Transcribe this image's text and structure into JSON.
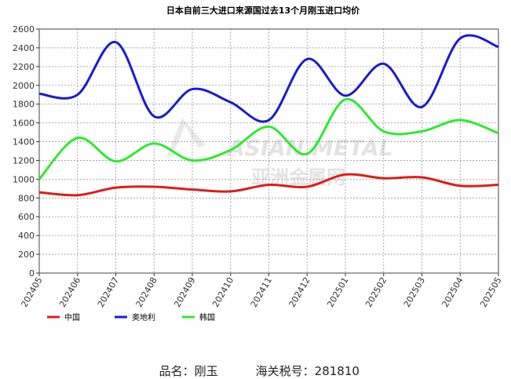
{
  "chart_data": {
    "type": "line",
    "title": "日本自前三大进口来源国过去13个月刚玉进口均价",
    "xlabel": "",
    "ylabel": "",
    "ylim": [
      0,
      2600
    ],
    "yticks": [
      0,
      200,
      400,
      600,
      800,
      1000,
      1200,
      1400,
      1600,
      1800,
      2000,
      2200,
      2400,
      2600
    ],
    "categories": [
      "202405",
      "202406",
      "202407",
      "202408",
      "202409",
      "202410",
      "202411",
      "202412",
      "202501",
      "202502",
      "202503",
      "202504",
      "202505"
    ],
    "grid": true,
    "legend_position": "bottom-left",
    "series": [
      {
        "name": "中国",
        "color": "#dd1c1c",
        "values": [
          860,
          830,
          910,
          920,
          890,
          870,
          940,
          920,
          1050,
          1010,
          1020,
          930,
          940
        ]
      },
      {
        "name": "奥地利",
        "color": "#1a1ad6",
        "values": [
          1910,
          1900,
          2460,
          1670,
          1960,
          1820,
          1630,
          2280,
          1890,
          2230,
          1770,
          2500,
          2410
        ]
      },
      {
        "name": "韩国",
        "color": "#2eea2e",
        "values": [
          1000,
          1440,
          1190,
          1380,
          1200,
          1310,
          1560,
          1270,
          1850,
          1510,
          1510,
          1630,
          1490
        ]
      }
    ]
  },
  "watermark": {
    "latin": "ASIAN METAL",
    "cjk": "亚洲金属网"
  },
  "footer": {
    "product_label": "品名：",
    "product_value": "刚玉",
    "hs_label": "海关税号：",
    "hs_value": "281810"
  }
}
